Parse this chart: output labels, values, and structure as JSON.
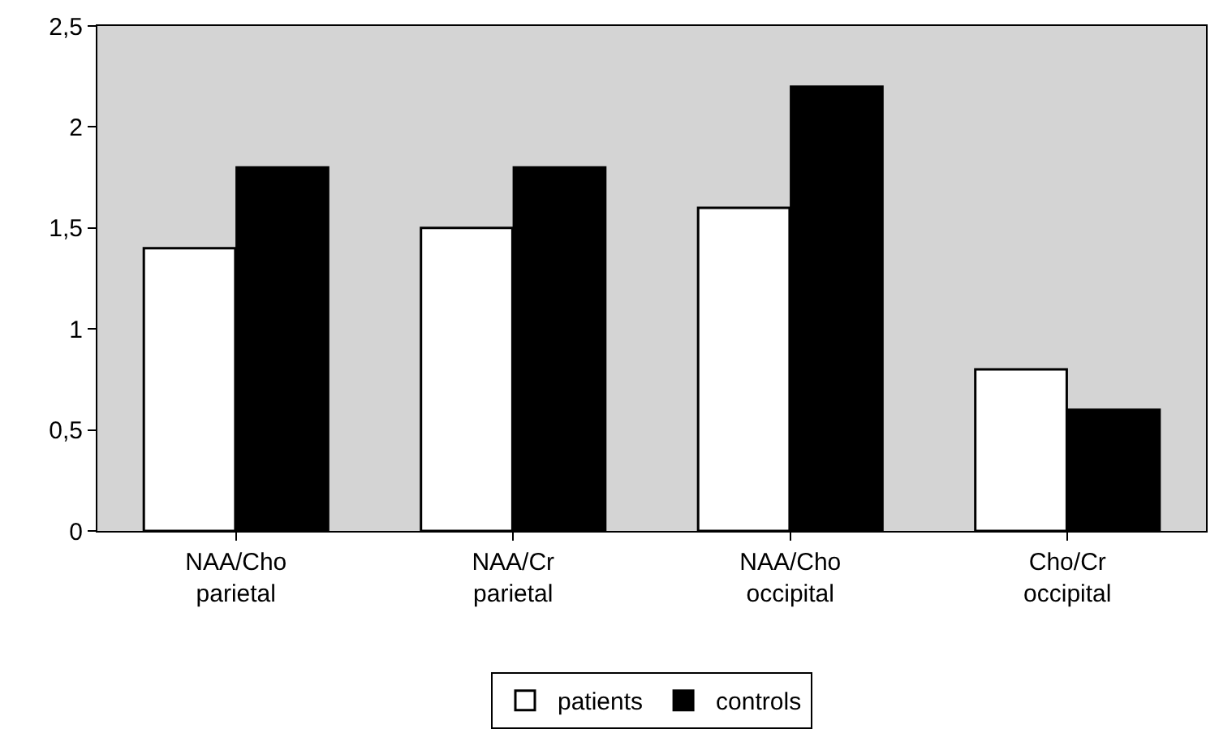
{
  "chart_data": {
    "type": "bar",
    "categories": [
      "NAA/Cho\nparietal",
      "NAA/Cr\nparietal",
      "NAA/Cho\noccipital",
      "Cho/Cr\noccipital"
    ],
    "series": [
      {
        "name": "patients",
        "color": "#ffffff",
        "values": [
          1.4,
          1.5,
          1.6,
          0.8
        ]
      },
      {
        "name": "controls",
        "color": "#000000",
        "values": [
          1.8,
          1.8,
          2.2,
          0.6
        ]
      }
    ],
    "ylim": [
      0,
      2.5
    ],
    "yticks": [
      0,
      {
        "value": 0.5,
        "label": "0,5"
      },
      1,
      {
        "value": 1.5,
        "label": "1,5"
      },
      2,
      {
        "value": 2.5,
        "label": "2,5"
      }
    ],
    "grid": false,
    "legend": "bottom"
  }
}
